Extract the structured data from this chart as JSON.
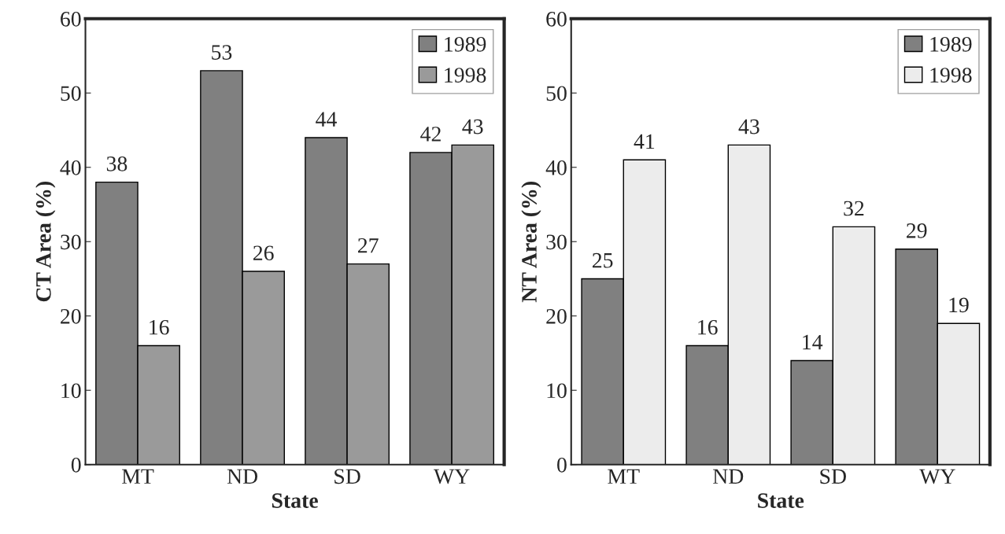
{
  "chart_data": [
    {
      "type": "bar",
      "xlabel": "State",
      "ylabel": "CT Area (%)",
      "categories": [
        "MT",
        "ND",
        "SD",
        "WY"
      ],
      "series": [
        {
          "name": "1989",
          "color": "#808080",
          "values": [
            38,
            53,
            44,
            42
          ]
        },
        {
          "name": "1998",
          "color": "#9a9a9a",
          "values": [
            16,
            26,
            27,
            43
          ]
        }
      ],
      "ylim": [
        0,
        60
      ],
      "yticks": [
        0,
        10,
        20,
        30,
        40,
        50,
        60
      ],
      "data_labels": true,
      "legend": "top right",
      "grid": false
    },
    {
      "type": "bar",
      "xlabel": "State",
      "ylabel": "NT Area (%)",
      "categories": [
        "MT",
        "ND",
        "SD",
        "WY"
      ],
      "series": [
        {
          "name": "1989",
          "color": "#808080",
          "values": [
            25,
            16,
            14,
            29
          ]
        },
        {
          "name": "1998",
          "color": "#ececec",
          "values": [
            41,
            43,
            32,
            19
          ]
        }
      ],
      "ylim": [
        0,
        60
      ],
      "yticks": [
        0,
        10,
        20,
        30,
        40,
        50,
        60
      ],
      "data_labels": true,
      "legend": "top right",
      "grid": false
    }
  ]
}
